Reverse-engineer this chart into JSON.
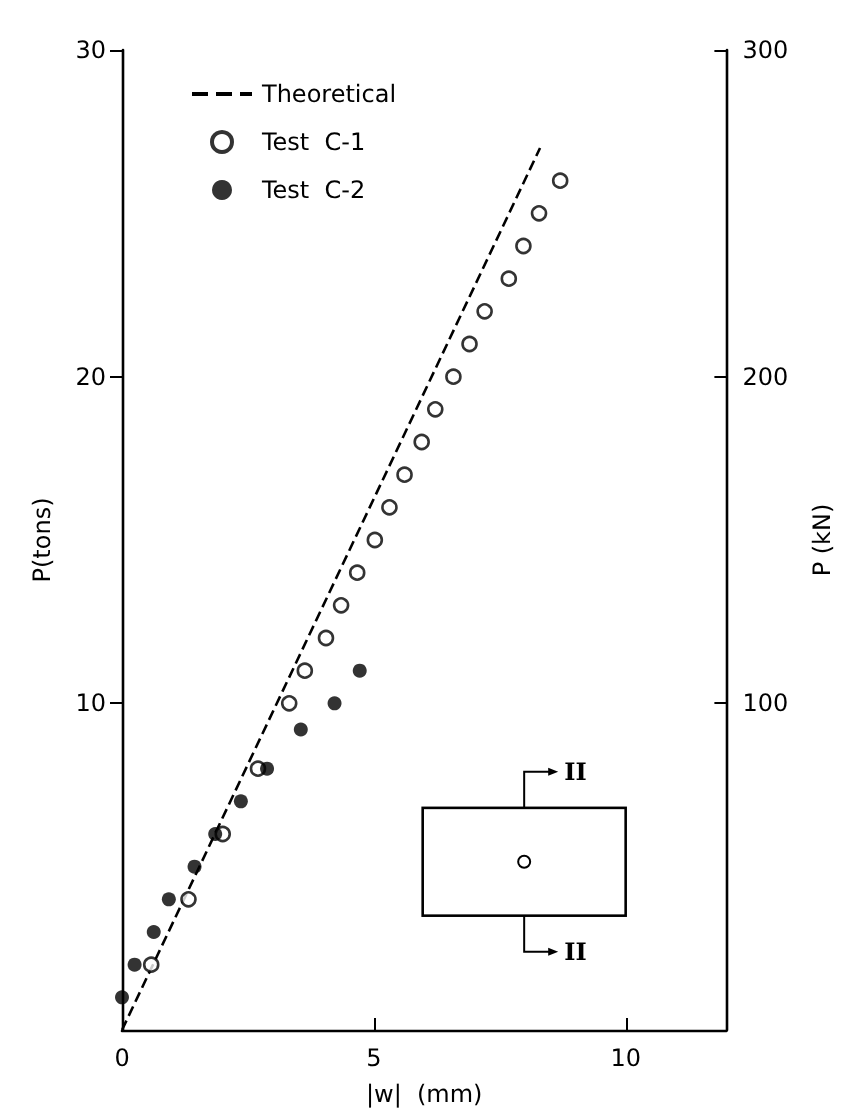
{
  "chart_data": {
    "type": "scatter",
    "xlabel": "|w|  (mm)",
    "ylabel": "P(tons)",
    "y2label": "P (kN)",
    "xlim": [
      0,
      12
    ],
    "xticks": [
      0,
      5,
      10
    ],
    "ylim": [
      0,
      30
    ],
    "yticks": [
      10,
      20,
      30
    ],
    "y2lim": [
      0,
      300
    ],
    "y2ticks": [
      100,
      200,
      300
    ],
    "grid": false,
    "legend": "top left",
    "annotations": [
      "II",
      "II"
    ],
    "series": [
      {
        "name": "Theoretical",
        "type": "line",
        "color": "#000000",
        "line_style": "dashed",
        "marker": "none",
        "x": [
          0,
          8.3
        ],
        "values": [
          0,
          27
        ]
      },
      {
        "name": "Test  C-1",
        "color": "#000000",
        "marker": "open_circle",
        "x": [
          0.58,
          1.32,
          2.0,
          2.7,
          3.32,
          3.63,
          4.05,
          4.35,
          4.67,
          5.02,
          5.31,
          5.61,
          5.95,
          6.22,
          6.58,
          6.9,
          7.2,
          7.68,
          7.97,
          8.28,
          8.7
        ],
        "values": [
          2,
          4,
          6,
          8,
          10,
          11,
          12,
          13,
          14,
          15,
          16,
          17,
          18,
          19,
          20,
          21,
          22,
          23,
          24,
          25,
          26
        ]
      },
      {
        "name": "Test  C-2",
        "color": "#000000",
        "marker": "circle",
        "x": [
          0,
          0.25,
          0.63,
          0.93,
          1.44,
          1.85,
          2.36,
          2.88,
          3.55,
          4.22,
          4.72
        ],
        "values": [
          1,
          2,
          3,
          4,
          5,
          6,
          7,
          8,
          9.2,
          10,
          11
        ]
      }
    ]
  }
}
